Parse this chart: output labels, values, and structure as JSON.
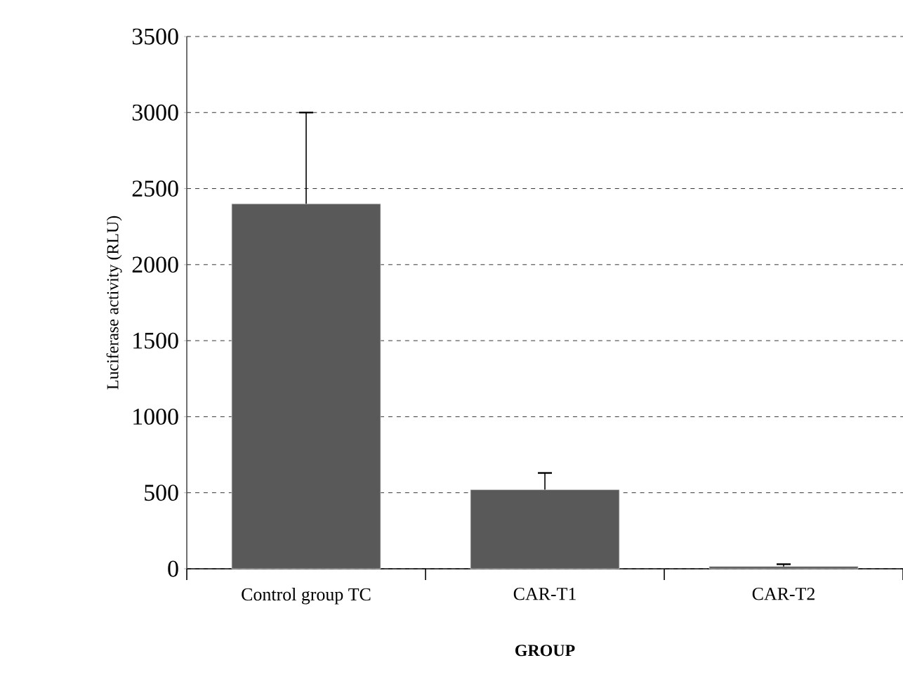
{
  "chart_data": {
    "type": "bar",
    "xlabel": "GROUP",
    "ylabel": "Luciferase activity (RLU)",
    "categories": [
      "Control group TC",
      "CAR-T1",
      "CAR-T2"
    ],
    "values": [
      2400,
      520,
      15
    ],
    "errors": [
      [
        2400,
        3000
      ],
      [
        520,
        630
      ],
      [
        15,
        30
      ]
    ],
    "color": "#595959",
    "ylim": [
      0,
      3500
    ],
    "yticks": [
      0,
      500,
      1000,
      1500,
      2000,
      2500,
      3000,
      3500
    ],
    "grid": "y"
  }
}
